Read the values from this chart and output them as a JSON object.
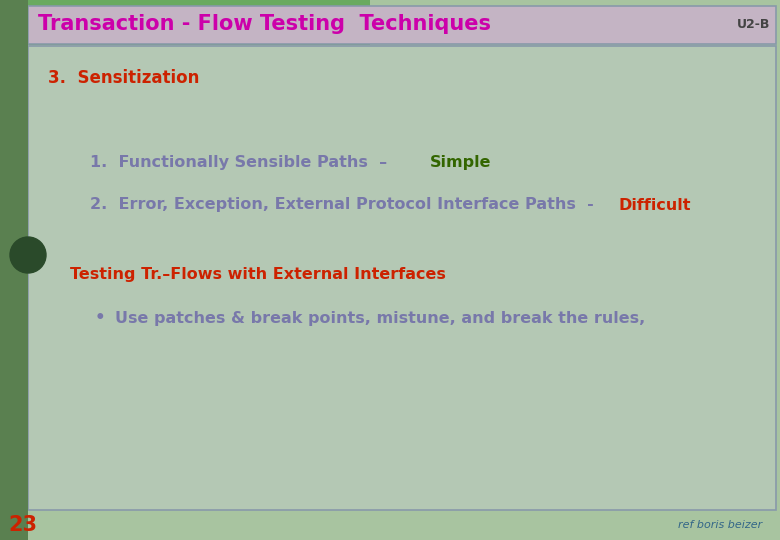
{
  "title": "Transaction - Flow Testing  Techniques",
  "title_color": "#cc00aa",
  "title_bg_color": "#c4b4c4",
  "header_right": "U2-B",
  "header_right_color": "#444444",
  "main_bg_color": "#a8c4a0",
  "content_bg_color": "#b4c8b4",
  "border_color": "#8899aa",
  "left_tab_color": "#5a8050",
  "left_tab_top_color": "#6aaa60",
  "page_number": "23",
  "page_number_color": "#cc2200",
  "ref_text": "ref boris beizer",
  "ref_color": "#336688",
  "section_title": "3.  Sensitization",
  "section_title_color": "#cc2200",
  "line1_prefix": "1.  Functionally Sensible Paths  –  ",
  "line1_prefix_color": "#7878aa",
  "line1_suffix": "Simple",
  "line1_suffix_color": "#336600",
  "line2_prefix": "2.  Error, Exception, External Protocol Interface Paths  - ",
  "line2_prefix_color": "#7878aa",
  "line2_suffix": "Difficult",
  "line2_suffix_color": "#cc2200",
  "sub_title": "Testing Tr.–Flows with External Interfaces",
  "sub_title_color": "#cc2200",
  "bullet_text": "Use patches & break points, mistune, and break the rules,",
  "bullet_color": "#7878aa",
  "fig_width": 7.8,
  "fig_height": 5.4,
  "dpi": 100
}
